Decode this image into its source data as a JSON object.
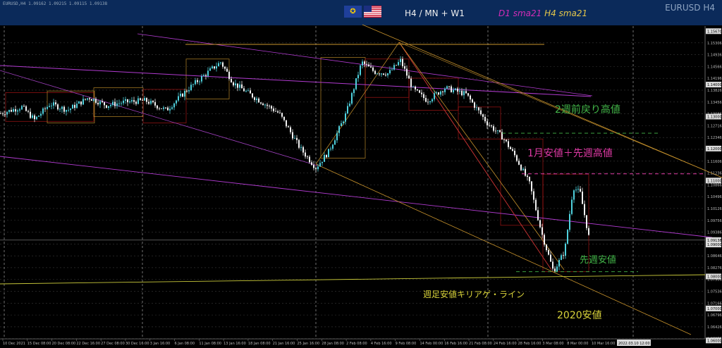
{
  "header": {
    "symbol_line": "EURUSD,H4  1.09162 1.09215 1.09115 1.09138",
    "timeframes": "H4 / MN + W1",
    "sma_d1": "D1 sma21",
    "sma_h4": "H4 sma21",
    "symbol_title": "EURUSD H4",
    "flags": [
      "eu-flag-icon",
      "us-flag-icon"
    ]
  },
  "colors": {
    "up_candle": "#4fd1dd",
    "down_candle": "#f2f2f2",
    "header_band": "#0b2a5a",
    "purple": "#b13bd0",
    "orange": "#c8932c",
    "green_label": "#43b649",
    "magenta_label": "#e13aa6",
    "yellow_label": "#d9d33a",
    "red_box": "#b21616"
  },
  "chart_data": {
    "type": "candlestick",
    "symbol": "EURUSD",
    "timeframe": "H4",
    "y_range": [
      1.0605,
      1.1583
    ],
    "price_ticks": [
      "1.15306",
      "1.14936",
      "1.14566",
      "1.14196",
      "1.13826",
      "1.13456",
      "1.13086",
      "1.12716",
      "1.12346",
      "1.11976",
      "1.11606",
      "1.11236",
      "1.10866",
      "1.10496",
      "1.10126",
      "1.09756",
      "1.09386",
      "1.09016",
      "1.08646",
      "1.08276",
      "1.07906",
      "1.07536",
      "1.07166",
      "1.06796",
      "1.06426",
      "1.06056"
    ],
    "highlighted_levels": [
      "1.15670",
      "1.14000",
      "1.13000",
      "1.12000",
      "1.11000",
      "1.09138",
      "1.09000",
      "1.08000",
      "1.07000",
      "1.06000"
    ],
    "current_price": "1.09138",
    "time_labels": [
      "10 Dec 2021",
      "15 Dec 08:00",
      "20 Dec 08:00",
      "22 Dec 16:00",
      "27 Dec 08:00",
      "30 Dec 16:00",
      "3 Jan 16:00",
      "6 Jan 08:00",
      "11 Jan 08:00",
      "13 Jan 16:00",
      "18 Jan 08:00",
      "21 Jan 16:00",
      "25 Jan 16:00",
      "28 Jan 08:00",
      "2 Feb 08:00",
      "4 Feb 16:00",
      "9 Feb 08:00",
      "14 Feb 00:00",
      "16 Feb 16:00",
      "21 Feb 08:00",
      "24 Feb 16:00",
      "28 Feb 16:00",
      "3 Mar 08:00",
      "8 Mar 00:00",
      "10 Mar 16:00"
    ],
    "cursor_time": "2022.03.10 12:00",
    "anchors": [
      {
        "t": 0,
        "p": 1.131
      },
      {
        "t": 30,
        "p": 1.133
      },
      {
        "t": 48,
        "p": 1.129
      },
      {
        "t": 70,
        "p": 1.134
      },
      {
        "t": 95,
        "p": 1.132
      },
      {
        "t": 125,
        "p": 1.136
      },
      {
        "t": 150,
        "p": 1.1335
      },
      {
        "t": 175,
        "p": 1.1345
      },
      {
        "t": 205,
        "p": 1.135
      },
      {
        "t": 235,
        "p": 1.132
      },
      {
        "t": 265,
        "p": 1.1385
      },
      {
        "t": 300,
        "p": 1.145
      },
      {
        "t": 312,
        "p": 1.147
      },
      {
        "t": 330,
        "p": 1.1405
      },
      {
        "t": 360,
        "p": 1.136
      },
      {
        "t": 395,
        "p": 1.131
      },
      {
        "t": 425,
        "p": 1.12
      },
      {
        "t": 447,
        "p": 1.114
      },
      {
        "t": 465,
        "p": 1.119
      },
      {
        "t": 490,
        "p": 1.131
      },
      {
        "t": 512,
        "p": 1.147
      },
      {
        "t": 530,
        "p": 1.144
      },
      {
        "t": 550,
        "p": 1.1435
      },
      {
        "t": 567,
        "p": 1.1475
      },
      {
        "t": 585,
        "p": 1.1385
      },
      {
        "t": 605,
        "p": 1.135
      },
      {
        "t": 630,
        "p": 1.139
      },
      {
        "t": 660,
        "p": 1.137
      },
      {
        "t": 690,
        "p": 1.128
      },
      {
        "t": 712,
        "p": 1.1235
      },
      {
        "t": 730,
        "p": 1.1175
      },
      {
        "t": 750,
        "p": 1.109
      },
      {
        "t": 768,
        "p": 1.093
      },
      {
        "t": 784,
        "p": 1.0815
      },
      {
        "t": 800,
        "p": 1.088
      },
      {
        "t": 812,
        "p": 1.108
      },
      {
        "t": 822,
        "p": 1.106
      },
      {
        "t": 835,
        "p": 1.0914
      }
    ],
    "annotations": [
      {
        "text": "2週前戻り高値",
        "price": 1.1248,
        "color": "#43b649"
      },
      {
        "text": "1月安値＋先週高値",
        "price": 1.1121,
        "color": "#e13aa6"
      },
      {
        "text": "先週安値",
        "price": 1.0824,
        "color": "#43b649"
      },
      {
        "text": "週足安値キリアゲ・ライン",
        "color": "#d9d33a"
      },
      {
        "text": "2020安値",
        "color": "#d9d33a"
      }
    ]
  }
}
